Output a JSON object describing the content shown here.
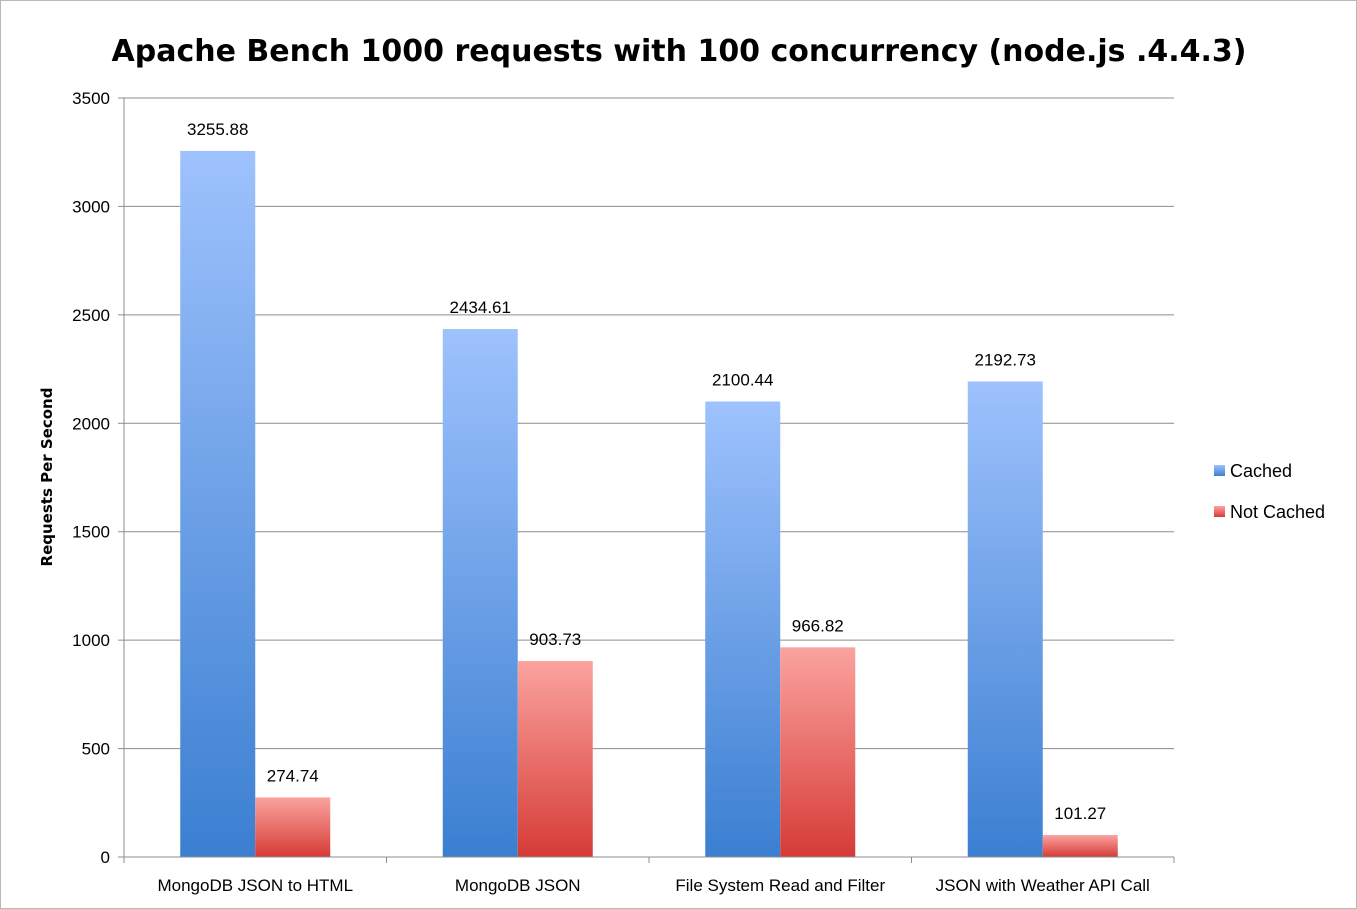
{
  "chart_data": {
    "type": "bar",
    "title": "Apache Bench 1000 requests with 100 concurrency (node.js .4.4.3)",
    "xlabel": "",
    "ylabel": "Requests Per Second",
    "ylim": [
      0,
      3500
    ],
    "yticks": [
      0,
      500,
      1000,
      1500,
      2000,
      2500,
      3000,
      3500
    ],
    "grid": true,
    "legend_position": "right",
    "categories": [
      "MongoDB JSON to HTML",
      "MongoDB JSON",
      "File System Read and Filter",
      "JSON with Weather API Call"
    ],
    "series": [
      {
        "name": "Cached",
        "values": [
          3255.88,
          2434.61,
          2100.44,
          2192.73
        ],
        "color": "#5a8fdc"
      },
      {
        "name": "Not Cached",
        "values": [
          274.74,
          903.73,
          966.82,
          101.27
        ],
        "color": "#e4605d"
      }
    ]
  }
}
